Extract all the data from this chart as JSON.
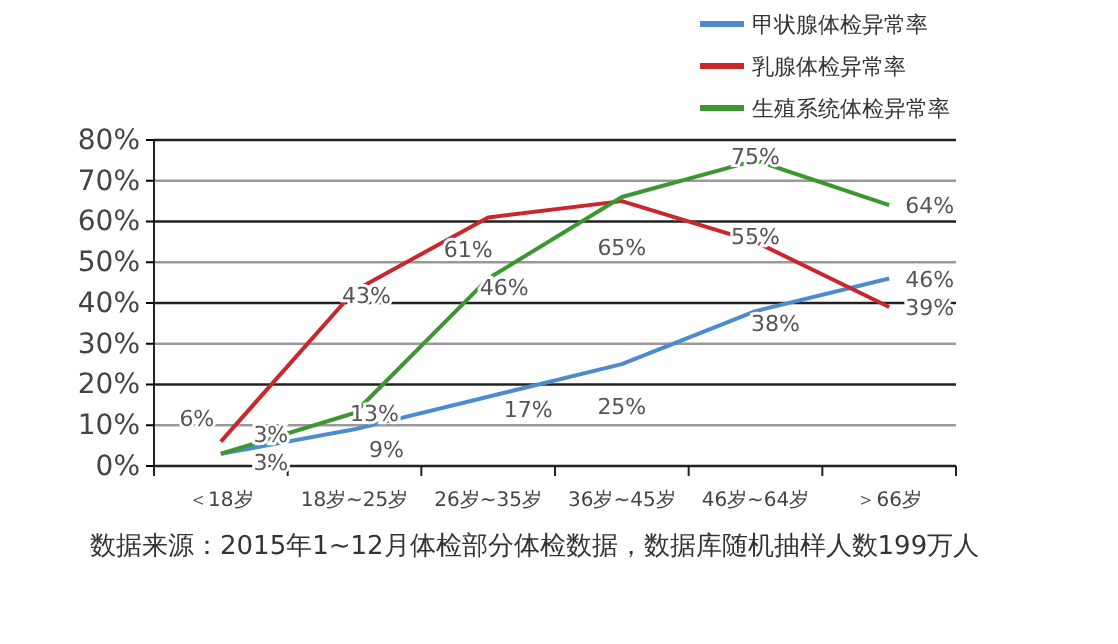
{
  "chart_data": {
    "type": "line",
    "categories": [
      "＜18岁",
      "18岁~25岁",
      "26岁~35岁",
      "36岁~45岁",
      "46岁~64岁",
      "＞66岁"
    ],
    "series": [
      {
        "name": "甲状腺体检异常率",
        "color": "#4a8ccf",
        "values": [
          3,
          9,
          17,
          25,
          38,
          46
        ],
        "value_labels": [
          "3%",
          "9%",
          "17%",
          "25%",
          "38%",
          "46%"
        ]
      },
      {
        "name": "乳腺体检异常率",
        "color": "#c8282d",
        "values": [
          6,
          43,
          61,
          65,
          55,
          39
        ],
        "value_labels": [
          "6%",
          "43%",
          "61%",
          "65%",
          "55%",
          "39%"
        ]
      },
      {
        "name": "生殖系统体检异常率",
        "color": "#3c9632",
        "values": [
          3,
          13,
          46,
          66,
          75,
          64
        ],
        "value_labels": [
          "3%",
          "13%",
          "46%",
          null,
          "75%",
          "64%"
        ]
      }
    ],
    "ylim": [
      0,
      80
    ],
    "yticks": [
      {
        "value": 0,
        "label": "0%"
      },
      {
        "value": 10,
        "label": "10%"
      },
      {
        "value": 20,
        "label": "20%"
      },
      {
        "value": 30,
        "label": "30%"
      },
      {
        "value": 40,
        "label": "40%"
      },
      {
        "value": 50,
        "label": "50%"
      },
      {
        "value": 60,
        "label": "60%"
      },
      {
        "value": 70,
        "label": "70%"
      },
      {
        "value": 80,
        "label": "80%"
      }
    ],
    "grid": "y",
    "legend": "top right",
    "marker": "none",
    "line_style": "solid",
    "annotations": [
      "数据来源：2015年1~12月体检部分体检数据，数据库随机抽样人数199万人"
    ]
  }
}
